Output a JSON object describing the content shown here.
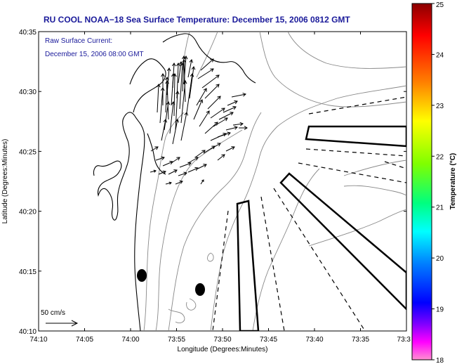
{
  "title": "RU COOL  NOAA−18  Sea Surface Temperature:  December 15, 2006 0812 GMT",
  "annotation": {
    "line1": "Raw Surface Current:",
    "line2": "December 15, 2006 08:00 GMT"
  },
  "scale_label": "50 cm/s",
  "x_axis": {
    "label": "Longitude (Degrees:Minutes)",
    "ticks": [
      "74:10",
      "74:05",
      "74:00",
      "73:55",
      "73:50",
      "73:45",
      "73:40",
      "73:35",
      "73:3"
    ]
  },
  "y_axis": {
    "label": "Latitude (Degrees:Minutes)",
    "ticks": [
      "40:35",
      "40:30",
      "40:25",
      "40:20",
      "40:15",
      "40:10"
    ]
  },
  "colorbar": {
    "label": "Temperature (°C)",
    "ticks": [
      "25",
      "24",
      "23",
      "22",
      "21",
      "20",
      "19",
      "18"
    ],
    "colors": [
      "#8b0000",
      "#ff0000",
      "#ff7f00",
      "#ffff00",
      "#7fff00",
      "#00ff7f",
      "#00ffff",
      "#007fff",
      "#0000ff",
      "#8000ff",
      "#ff00ff",
      "#ff80c0"
    ]
  }
}
